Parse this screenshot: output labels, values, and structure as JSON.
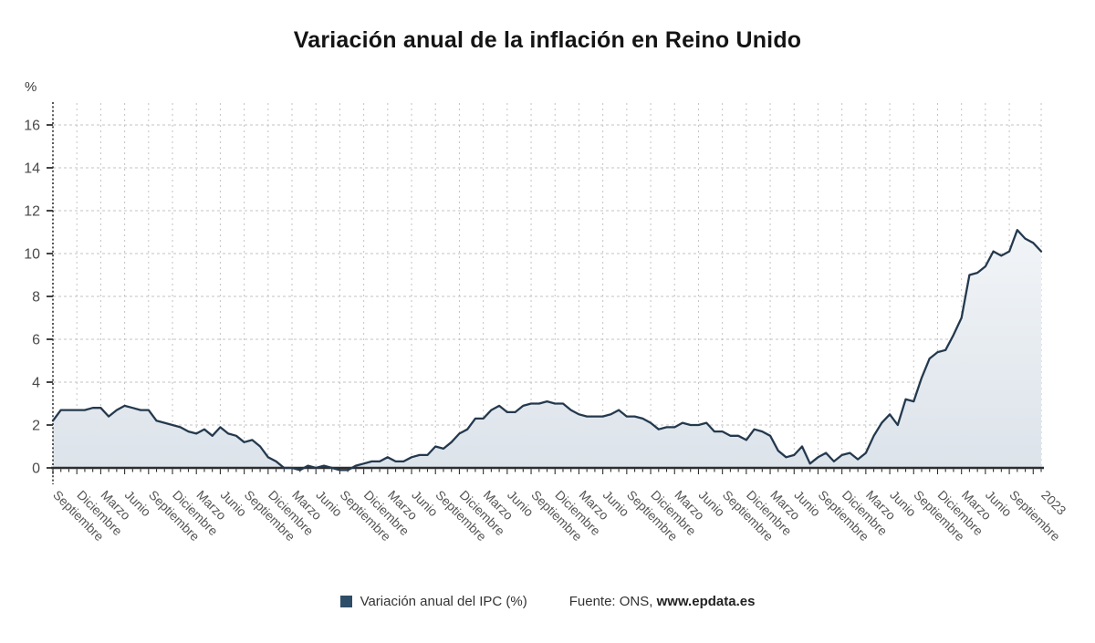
{
  "title": "Variación anual de la inflación en Reino Unido",
  "legend": {
    "series_label": "Variación anual del IPC (%)",
    "source_prefix": "Fuente: ONS, ",
    "source_link": "www.epdata.es"
  },
  "chart_data": {
    "type": "area",
    "title": "Variación anual de la inflación en Reino Unido",
    "unit": "%",
    "ylabel": "%",
    "xlabel": "",
    "ylim": [
      -0.2,
      17
    ],
    "y_ticks": [
      0,
      2,
      4,
      6,
      8,
      10,
      12,
      14,
      16
    ],
    "grid": "dashed",
    "legend_position": "bottom",
    "x_tick_labels": [
      [
        0,
        "Septiembre"
      ],
      [
        3,
        "Diciembre"
      ],
      [
        6,
        "Marzo"
      ],
      [
        9,
        "Junio"
      ],
      [
        12,
        "Septiembre"
      ],
      [
        15,
        "Diciembre"
      ],
      [
        18,
        "Marzo"
      ],
      [
        21,
        "Junio"
      ],
      [
        24,
        "Septiembre"
      ],
      [
        27,
        "Diciembre"
      ],
      [
        30,
        "Marzo"
      ],
      [
        33,
        "Junio"
      ],
      [
        36,
        "Septiembre"
      ],
      [
        39,
        "Diciembre"
      ],
      [
        42,
        "Marzo"
      ],
      [
        45,
        "Junio"
      ],
      [
        48,
        "Septiembre"
      ],
      [
        51,
        "Diciembre"
      ],
      [
        54,
        "Marzo"
      ],
      [
        57,
        "Junio"
      ],
      [
        60,
        "Septiembre"
      ],
      [
        63,
        "Diciembre"
      ],
      [
        66,
        "Marzo"
      ],
      [
        69,
        "Junio"
      ],
      [
        72,
        "Septiembre"
      ],
      [
        75,
        "Diciembre"
      ],
      [
        78,
        "Marzo"
      ],
      [
        81,
        "Junio"
      ],
      [
        84,
        "Septiembre"
      ],
      [
        87,
        "Diciembre"
      ],
      [
        90,
        "Marzo"
      ],
      [
        93,
        "Junio"
      ],
      [
        96,
        "Septiembre"
      ],
      [
        99,
        "Diciembre"
      ],
      [
        102,
        "Marzo"
      ],
      [
        105,
        "Junio"
      ],
      [
        108,
        "Septiembre"
      ],
      [
        111,
        "Diciembre"
      ],
      [
        114,
        "Marzo"
      ],
      [
        117,
        "Junio"
      ],
      [
        120,
        "Septiembre"
      ],
      [
        124,
        "2023"
      ]
    ],
    "series": [
      {
        "name": "Variación anual del IPC (%)",
        "values": [
          2.2,
          2.7,
          2.7,
          2.7,
          2.7,
          2.8,
          2.8,
          2.4,
          2.7,
          2.9,
          2.8,
          2.7,
          2.7,
          2.2,
          2.1,
          2.0,
          1.9,
          1.7,
          1.6,
          1.8,
          1.5,
          1.9,
          1.6,
          1.5,
          1.2,
          1.3,
          1.0,
          0.5,
          0.3,
          0.0,
          0.0,
          -0.1,
          0.1,
          0.0,
          0.1,
          0.0,
          -0.1,
          -0.1,
          0.1,
          0.2,
          0.3,
          0.3,
          0.5,
          0.3,
          0.3,
          0.5,
          0.6,
          0.6,
          1.0,
          0.9,
          1.2,
          1.6,
          1.8,
          2.3,
          2.3,
          2.7,
          2.9,
          2.6,
          2.6,
          2.9,
          3.0,
          3.0,
          3.1,
          3.0,
          3.0,
          2.7,
          2.5,
          2.4,
          2.4,
          2.4,
          2.5,
          2.7,
          2.4,
          2.4,
          2.3,
          2.1,
          1.8,
          1.9,
          1.9,
          2.1,
          2.0,
          2.0,
          2.1,
          1.7,
          1.7,
          1.5,
          1.5,
          1.3,
          1.8,
          1.7,
          1.5,
          0.8,
          0.5,
          0.6,
          1.0,
          0.2,
          0.5,
          0.7,
          0.3,
          0.6,
          0.7,
          0.4,
          0.7,
          1.5,
          2.1,
          2.5,
          2.0,
          3.2,
          3.1,
          4.2,
          5.1,
          5.4,
          5.5,
          6.2,
          7.0,
          9.0,
          9.1,
          9.4,
          10.1,
          9.9,
          10.1,
          11.1,
          10.7,
          10.5,
          10.1
        ]
      }
    ],
    "colors": {
      "line": "#24394e",
      "area_top": "#fbfcfd",
      "area_bottom": "#dce3ea",
      "grid": "#c3c3c3",
      "axis": "#2e2e2e",
      "tick_label": "#555555",
      "legend_swatch": "#2e4d68"
    }
  }
}
